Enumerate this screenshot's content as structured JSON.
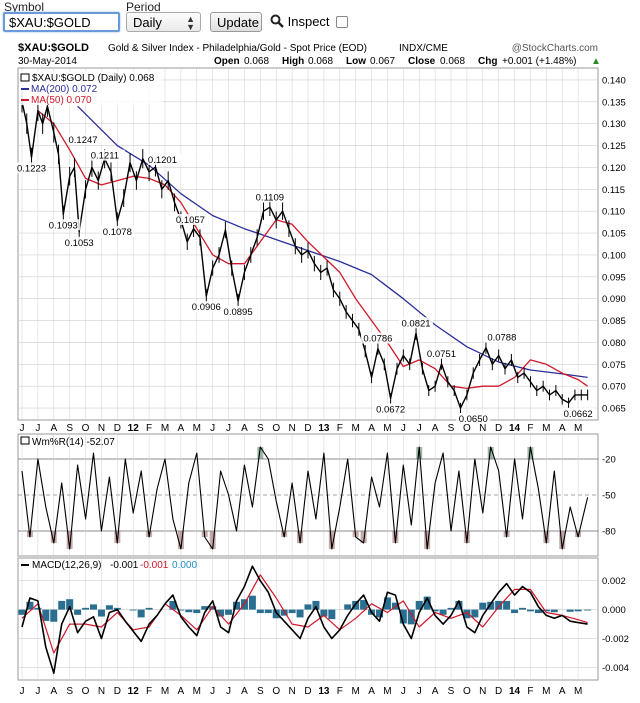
{
  "toolbar": {
    "symbol_label": "Symbol",
    "period_label": "Period",
    "symbol_value": "$XAU:$GOLD",
    "period_value": "Daily",
    "update_label": "Update",
    "inspect_label": "Inspect"
  },
  "header": {
    "symbol": "$XAU:$GOLD",
    "description": "Gold & Silver Index - Philadelphia/Gold - Spot Price (EOD)",
    "exchange": "INDX/CME",
    "watermark": "@StockCharts.com",
    "date": "30-May-2014",
    "open_label": "Open",
    "open": "0.068",
    "high_label": "High",
    "high": "0.068",
    "low_label": "Low",
    "low": "0.067",
    "close_label": "Close",
    "close": "0.068",
    "chg_label": "Chg",
    "chg": "+0.001 (+1.48%)"
  },
  "colors": {
    "price": "#000000",
    "ma200": "#2b2f9a",
    "ma50": "#d0182b",
    "histogram": "#2a6f8f",
    "grid": "#cfcfcf"
  },
  "chart_data": [
    {
      "type": "line",
      "panel": "price",
      "legend": [
        "$XAU:$GOLD (Daily) 0.068",
        "MA(200) 0.072",
        "MA(50) 0.070"
      ],
      "yticks": [
        0.065,
        0.07,
        0.075,
        0.08,
        0.085,
        0.09,
        0.095,
        0.1,
        0.105,
        0.11,
        0.115,
        0.12,
        0.125,
        0.13,
        0.135,
        0.14
      ],
      "ytick_labels": [
        "0.065",
        "0.070",
        "0.075",
        "0.080",
        "0.085",
        "0.090",
        "0.095",
        "0.100",
        "0.105",
        "0.110",
        "0.115",
        "0.120",
        "0.125",
        "0.130",
        "0.135",
        "0.140"
      ],
      "ylim": [
        0.0625,
        0.1425
      ],
      "xlim": [
        0,
        36
      ],
      "xlabels": [
        "J",
        "J",
        "A",
        "S",
        "O",
        "N",
        "D",
        "12",
        "F",
        "M",
        "A",
        "M",
        "J",
        "J",
        "A",
        "S",
        "O",
        "N",
        "D",
        "13",
        "F",
        "M",
        "A",
        "M",
        "J",
        "J",
        "A",
        "S",
        "O",
        "N",
        "D",
        "14",
        "F",
        "M",
        "A",
        "M"
      ],
      "series": [
        {
          "name": "$XAU:$GOLD",
          "x": [
            0,
            0.3,
            0.6,
            1.0,
            1.3,
            1.6,
            2.0,
            2.3,
            2.6,
            3.0,
            3.3,
            3.6,
            4.0,
            4.4,
            4.8,
            5.2,
            5.6,
            6.0,
            6.4,
            6.8,
            7.2,
            7.6,
            8.0,
            8.4,
            8.8,
            9.2,
            9.6,
            10.0,
            10.4,
            10.8,
            11.2,
            11.6,
            12.0,
            12.4,
            12.8,
            13.2,
            13.6,
            14.0,
            14.4,
            14.8,
            15.2,
            15.6,
            16.0,
            16.4,
            16.8,
            17.2,
            17.6,
            18.0,
            18.4,
            18.8,
            19.2,
            19.6,
            20.0,
            20.4,
            20.8,
            21.2,
            21.6,
            22.0,
            22.4,
            22.8,
            23.2,
            23.6,
            24.0,
            24.4,
            24.8,
            25.2,
            25.6,
            26.0,
            26.4,
            26.8,
            27.2,
            27.6,
            28.0,
            28.4,
            28.8,
            29.2,
            29.6,
            30.0,
            30.4,
            30.8,
            31.2,
            31.6,
            32.0,
            32.4,
            32.8,
            33.2,
            33.6,
            34.0,
            34.4,
            34.8,
            35.2,
            35.6
          ],
          "values": [
            0.135,
            0.13,
            0.1223,
            0.133,
            0.13,
            0.134,
            0.128,
            0.123,
            0.1093,
            0.118,
            0.12,
            0.1053,
            0.115,
            0.12,
            0.117,
            0.122,
            0.119,
            0.1078,
            0.113,
            0.1211,
            0.117,
            0.122,
            0.119,
            0.1201,
            0.115,
            0.117,
            0.112,
            0.108,
            0.103,
            0.106,
            0.104,
            0.0906,
            0.097,
            0.1,
            0.1057,
            0.097,
            0.0895,
            0.096,
            0.1,
            0.104,
            0.11,
            0.1109,
            0.108,
            0.11,
            0.106,
            0.102,
            0.1,
            0.101,
            0.098,
            0.096,
            0.097,
            0.092,
            0.09,
            0.087,
            0.085,
            0.083,
            0.078,
            0.072,
            0.0786,
            0.075,
            0.0672,
            0.074,
            0.077,
            0.075,
            0.0821,
            0.074,
            0.069,
            0.07,
            0.0751,
            0.071,
            0.069,
            0.065,
            0.068,
            0.073,
            0.076,
            0.0788,
            0.075,
            0.077,
            0.074,
            0.076,
            0.072,
            0.073,
            0.071,
            0.069,
            0.07,
            0.068,
            0.069,
            0.067,
            0.0662,
            0.068,
            0.068,
            0.068
          ]
        },
        {
          "name": "MA(200)",
          "x": [
            3.5,
            6,
            8,
            10,
            12,
            14,
            16,
            18,
            20,
            22,
            24,
            26,
            28,
            30,
            32,
            34,
            35.6
          ],
          "values": [
            0.134,
            0.125,
            0.1205,
            0.114,
            0.109,
            0.106,
            0.1035,
            0.101,
            0.0985,
            0.0955,
            0.09,
            0.084,
            0.079,
            0.0755,
            0.0737,
            0.0728,
            0.072
          ]
        },
        {
          "name": "MA(50)",
          "x": [
            1,
            2,
            3,
            4,
            5,
            6,
            7,
            8,
            9,
            10,
            11,
            12,
            13,
            14,
            15,
            16,
            17,
            18,
            19,
            20,
            21,
            22,
            23,
            24,
            25,
            26,
            27,
            28,
            29,
            30,
            31,
            32,
            33,
            34,
            35,
            35.6
          ],
          "values": [
            0.133,
            0.13,
            0.124,
            0.1175,
            0.116,
            0.117,
            0.118,
            0.1175,
            0.116,
            0.112,
            0.106,
            0.1,
            0.098,
            0.098,
            0.103,
            0.108,
            0.107,
            0.103,
            0.0995,
            0.096,
            0.09,
            0.085,
            0.08,
            0.0745,
            0.076,
            0.074,
            0.07,
            0.0695,
            0.07,
            0.07,
            0.072,
            0.076,
            0.075,
            0.073,
            0.0715,
            0.07
          ]
        }
      ],
      "annotations": [
        {
          "x": 0.6,
          "y": 0.1223,
          "text": "0.1223",
          "pos": "below"
        },
        {
          "x": 2.6,
          "y": 0.1093,
          "text": "0.1093",
          "pos": "below"
        },
        {
          "x": 2.8,
          "y": 0.1247,
          "text": "0.1247",
          "pos": "above-right"
        },
        {
          "x": 3.6,
          "y": 0.1053,
          "text": "0.1053",
          "pos": "below"
        },
        {
          "x": 4.2,
          "y": 0.1211,
          "text": "0.1211",
          "pos": "above-right"
        },
        {
          "x": 6.0,
          "y": 0.1078,
          "text": "0.1078",
          "pos": "below"
        },
        {
          "x": 7.8,
          "y": 0.1201,
          "text": "0.1201",
          "pos": "above-right"
        },
        {
          "x": 10.6,
          "y": 0.1057,
          "text": "0.1057",
          "pos": "above"
        },
        {
          "x": 11.6,
          "y": 0.0906,
          "text": "0.0906",
          "pos": "below"
        },
        {
          "x": 13.6,
          "y": 0.0895,
          "text": "0.0895",
          "pos": "below"
        },
        {
          "x": 15.6,
          "y": 0.1109,
          "text": "0.1109",
          "pos": "above"
        },
        {
          "x": 22.4,
          "y": 0.0786,
          "text": "0.0786",
          "pos": "above"
        },
        {
          "x": 23.2,
          "y": 0.0672,
          "text": "0.0672",
          "pos": "below"
        },
        {
          "x": 24.8,
          "y": 0.0821,
          "text": "0.0821",
          "pos": "above"
        },
        {
          "x": 26.4,
          "y": 0.0751,
          "text": "0.0751",
          "pos": "above"
        },
        {
          "x": 28.4,
          "y": 0.065,
          "text": "0.0650",
          "pos": "below"
        },
        {
          "x": 30.2,
          "y": 0.0788,
          "text": "0.0788",
          "pos": "above"
        },
        {
          "x": 35.0,
          "y": 0.0662,
          "text": "0.0662",
          "pos": "below"
        }
      ]
    },
    {
      "type": "line",
      "panel": "williams",
      "legend": [
        "Wm%R(14) -52.07"
      ],
      "yticks": [
        -20,
        -50,
        -80
      ],
      "ytick_labels": [
        "-20",
        "-50",
        "-80"
      ],
      "ylim": [
        -100,
        0
      ],
      "xlim": [
        0,
        36
      ],
      "series": [
        {
          "name": "Wm%R(14)",
          "x": [
            0,
            0.5,
            1,
            1.5,
            2,
            2.5,
            3,
            3.5,
            4,
            4.5,
            5,
            5.5,
            6,
            6.5,
            7,
            7.5,
            8,
            8.5,
            9,
            9.5,
            10,
            10.5,
            11,
            11.5,
            12,
            12.5,
            13,
            13.5,
            14,
            14.5,
            15,
            15.5,
            16,
            16.5,
            17,
            17.5,
            18,
            18.5,
            19,
            19.5,
            20,
            20.5,
            21,
            21.5,
            22,
            22.5,
            23,
            23.5,
            24,
            24.5,
            25,
            25.5,
            26,
            26.5,
            27,
            27.5,
            28,
            28.5,
            29,
            29.5,
            30,
            30.5,
            31,
            31.5,
            32,
            32.5,
            33,
            33.5,
            34,
            34.5,
            35,
            35.6
          ],
          "values": [
            -30,
            -85,
            -20,
            -60,
            -90,
            -40,
            -95,
            -25,
            -70,
            -15,
            -80,
            -35,
            -90,
            -20,
            -65,
            -30,
            -85,
            -45,
            -20,
            -70,
            -95,
            -40,
            -15,
            -85,
            -95,
            -30,
            -50,
            -80,
            -25,
            -60,
            -10,
            -20,
            -55,
            -85,
            -40,
            -90,
            -30,
            -70,
            -15,
            -95,
            -60,
            -20,
            -85,
            -90,
            -35,
            -60,
            -15,
            -90,
            -25,
            -75,
            -10,
            -95,
            -40,
            -15,
            -80,
            -30,
            -90,
            -20,
            -65,
            -10,
            -30,
            -85,
            -20,
            -70,
            -10,
            -45,
            -90,
            -30,
            -95,
            -60,
            -85,
            -52
          ]
        }
      ]
    },
    {
      "type": "line",
      "panel": "macd",
      "legend": [
        "MACD(12,26,9)",
        "-0.001",
        "-0.001",
        "0.000"
      ],
      "yticks": [
        0.002,
        0.0,
        -0.002,
        -0.004
      ],
      "ytick_labels": [
        "0.002",
        "0.000",
        "-0.002",
        "-0.004"
      ],
      "ylim": [
        -0.0048,
        0.0035
      ],
      "xlim": [
        0,
        36
      ],
      "series": [
        {
          "name": "MACD",
          "x": [
            0,
            0.5,
            1,
            1.5,
            2,
            2.5,
            3,
            3.5,
            4,
            4.5,
            5,
            5.5,
            6,
            6.5,
            7,
            7.5,
            8,
            8.5,
            9,
            9.5,
            10,
            10.5,
            11,
            11.5,
            12,
            12.5,
            13,
            13.5,
            14,
            14.5,
            15,
            15.5,
            16,
            16.5,
            17,
            17.5,
            18,
            18.5,
            19,
            19.5,
            20,
            20.5,
            21,
            21.5,
            22,
            22.5,
            23,
            23.5,
            24,
            24.5,
            25,
            25.5,
            26,
            26.5,
            27,
            27.5,
            28,
            28.5,
            29,
            29.5,
            30,
            30.5,
            31,
            31.5,
            32,
            32.5,
            33,
            33.5,
            34,
            34.5,
            35,
            35.6
          ],
          "values": [
            -0.0012,
            0.0008,
            0.0006,
            -0.0026,
            -0.0044,
            -0.001,
            0.0002,
            -0.0016,
            -0.0008,
            -0.0005,
            -0.002,
            -0.0002,
            0.0,
            -0.0008,
            -0.0015,
            -0.0022,
            -0.001,
            -0.0004,
            0.0004,
            0.001,
            -0.0005,
            -0.0012,
            -0.0018,
            -0.0002,
            0.0006,
            -0.0012,
            -0.0016,
            0.0006,
            0.0016,
            0.003,
            0.002,
            0.0012,
            -0.0002,
            -0.0008,
            -0.0014,
            -0.002,
            -0.0006,
            0.0002,
            -0.0012,
            -0.002,
            -0.0014,
            -0.0004,
            0.0004,
            0.001,
            -0.0002,
            -0.0008,
            0.0012,
            0.001,
            -0.001,
            -0.002,
            -0.0002,
            0.0008,
            -0.0004,
            -0.001,
            -0.0004,
            0.0006,
            -0.0012,
            -0.0016,
            -0.0004,
            0.0004,
            0.0012,
            0.0018,
            0.001,
            0.0016,
            0.0012,
            0.0002,
            -0.0004,
            -0.0006,
            -0.0004,
            -0.0008,
            -0.0009,
            -0.001
          ]
        },
        {
          "name": "Signal",
          "x": [
            0,
            1,
            2,
            3,
            4,
            5,
            6,
            7,
            8,
            9,
            10,
            11,
            12,
            13,
            14,
            15,
            16,
            17,
            18,
            19,
            20,
            21,
            22,
            23,
            24,
            25,
            26,
            27,
            28,
            29,
            30,
            31,
            32,
            33,
            34,
            35,
            35.6
          ],
          "values": [
            -0.0006,
            0.0004,
            -0.003,
            -0.001,
            -0.001,
            -0.0012,
            -0.0002,
            -0.0014,
            -0.0012,
            0.0004,
            -0.0004,
            -0.0014,
            0.0002,
            -0.001,
            0.0004,
            0.0024,
            0.0008,
            -0.001,
            -0.0012,
            -0.0004,
            -0.0014,
            -0.0006,
            0.0004,
            -0.0002,
            0.0006,
            -0.0012,
            -0.0002,
            -0.0006,
            -0.0002,
            -0.0012,
            0.0002,
            0.0014,
            0.0014,
            -0.0002,
            -0.0004,
            -0.0007,
            -0.0009
          ]
        }
      ]
    }
  ]
}
